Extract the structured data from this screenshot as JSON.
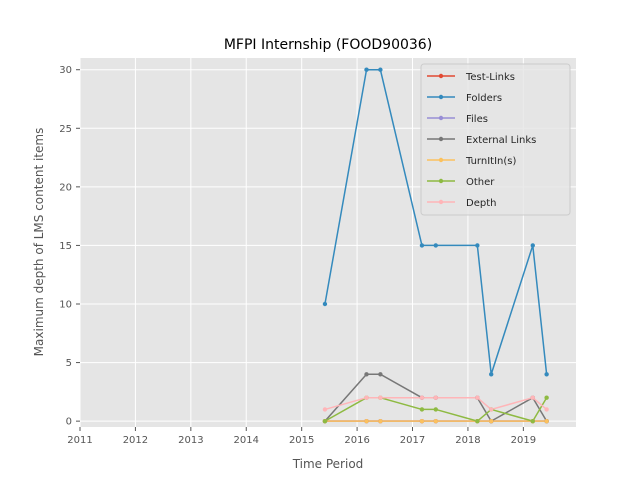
{
  "chart_data": {
    "type": "line",
    "title": "MFPI Internship (FOOD90036)",
    "xlabel": "Time Period",
    "ylabel": "Maximum depth of LMS content items",
    "xlim": [
      2011.0,
      2019.95
    ],
    "ylim": [
      -0.5,
      31.0
    ],
    "x_ticks": [
      2011,
      2012,
      2013,
      2014,
      2015,
      2016,
      2017,
      2018,
      2019
    ],
    "x_tick_labels": [
      "2011",
      "2012",
      "2013",
      "2014",
      "2015",
      "2016",
      "2017",
      "2018",
      "2019"
    ],
    "y_ticks": [
      0,
      5,
      10,
      15,
      20,
      25,
      30
    ],
    "y_tick_labels": [
      "0",
      "5",
      "10",
      "15",
      "20",
      "25",
      "30"
    ],
    "grid": true,
    "background": "#e5e5e5",
    "legend_position": "upper-right",
    "x": [
      2015.42,
      2016.17,
      2016.42,
      2017.17,
      2017.42,
      2018.17,
      2018.42,
      2019.17,
      2019.42
    ],
    "series": [
      {
        "name": "Test-Links",
        "color": "#e24a33",
        "values": [
          0,
          0,
          0,
          0,
          0,
          0,
          0,
          0,
          0
        ]
      },
      {
        "name": "Folders",
        "color": "#348abd",
        "values": [
          10,
          30,
          30,
          15,
          15,
          15,
          4,
          15,
          4
        ]
      },
      {
        "name": "Files",
        "color": "#988ed5",
        "values": [
          0,
          0,
          0,
          0,
          0,
          0,
          0,
          0,
          0
        ]
      },
      {
        "name": "External Links",
        "color": "#777777",
        "values": [
          0,
          4,
          4,
          2,
          2,
          2,
          0,
          2,
          0
        ]
      },
      {
        "name": "TurnItIn(s)",
        "color": "#fbc15e",
        "values": [
          0,
          0,
          0,
          0,
          0,
          0,
          0,
          0,
          0
        ]
      },
      {
        "name": "Other",
        "color": "#8eba42",
        "values": [
          0,
          2,
          2,
          1,
          1,
          0,
          1,
          0,
          2
        ]
      },
      {
        "name": "Depth",
        "color": "#ffb5b8",
        "values": [
          1,
          2,
          2,
          2,
          2,
          2,
          1,
          2,
          1
        ]
      }
    ]
  }
}
